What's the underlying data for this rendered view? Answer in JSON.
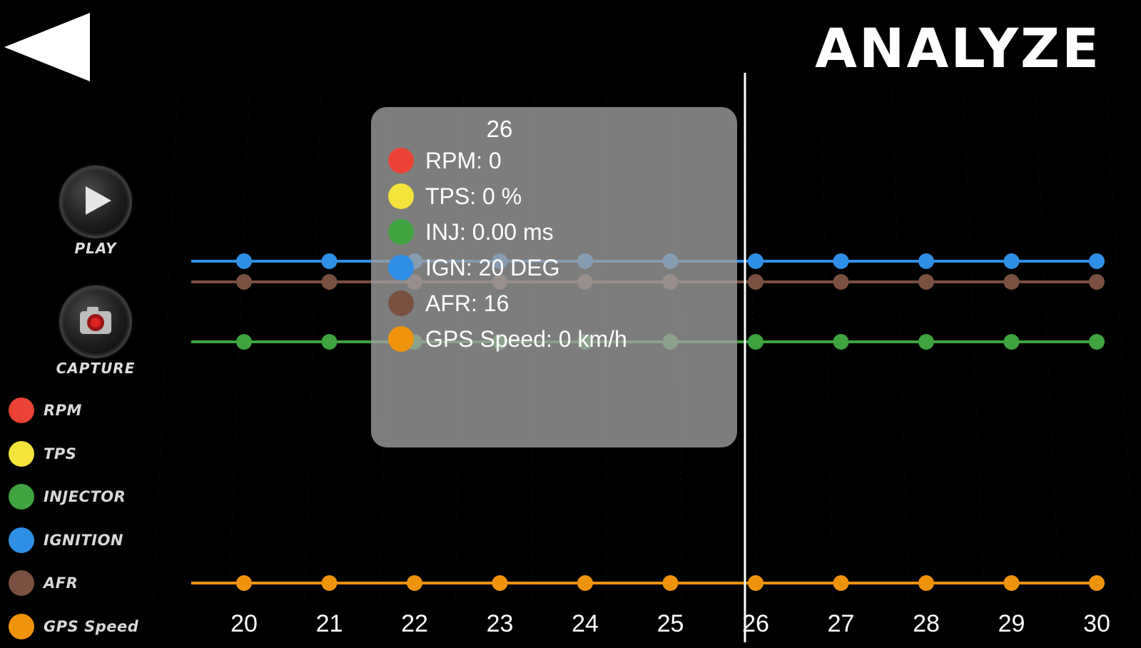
{
  "header": {
    "title": "ANALYZE",
    "back_icon": "back-arrow-icon"
  },
  "controls": {
    "play_label": "PLAY",
    "play_icon": "play-icon",
    "capture_label": "CAPTURE",
    "capture_icon": "camera-icon"
  },
  "legend": [
    {
      "label": "RPM",
      "color": "#ea4335"
    },
    {
      "label": "TPS",
      "color": "#f4e33a"
    },
    {
      "label": "INJECTOR",
      "color": "#3fa33f"
    },
    {
      "label": "IGNITION",
      "color": "#2f8fe6"
    },
    {
      "label": "AFR",
      "color": "#7a5040"
    },
    {
      "label": "GPS Speed",
      "color": "#f0930c"
    }
  ],
  "tooltip": {
    "title": "26",
    "rows": [
      {
        "text": "RPM: 0",
        "color": "#ea4335"
      },
      {
        "text": "TPS: 0 %",
        "color": "#f4e33a"
      },
      {
        "text": "INJ: 0.00 ms",
        "color": "#3fa33f"
      },
      {
        "text": "IGN: 20 DEG",
        "color": "#2f8fe6"
      },
      {
        "text": "AFR: 16",
        "color": "#7a5040"
      },
      {
        "text": "GPS Speed: 0 km/h",
        "color": "#f0930c"
      }
    ]
  },
  "chart_data": {
    "type": "line",
    "x": [
      20,
      21,
      22,
      23,
      24,
      25,
      26,
      27,
      28,
      29,
      30
    ],
    "cursor_x": 26,
    "series": [
      {
        "name": "IGNITION",
        "color": "#2f8fe6",
        "values": [
          20,
          20,
          20,
          20,
          20,
          20,
          20,
          20,
          20,
          20,
          20
        ]
      },
      {
        "name": "AFR",
        "color": "#7a5040",
        "values": [
          16,
          16,
          16,
          16,
          16,
          16,
          16,
          16,
          16,
          16,
          16
        ]
      },
      {
        "name": "INJECTOR",
        "color": "#3fa33f",
        "values": [
          0,
          0,
          0,
          0,
          0,
          0,
          0,
          0,
          0,
          0,
          0
        ]
      },
      {
        "name": "GPS Speed",
        "color": "#f0930c",
        "values": [
          0,
          0,
          0,
          0,
          0,
          0,
          0,
          0,
          0,
          0,
          0
        ]
      }
    ]
  }
}
